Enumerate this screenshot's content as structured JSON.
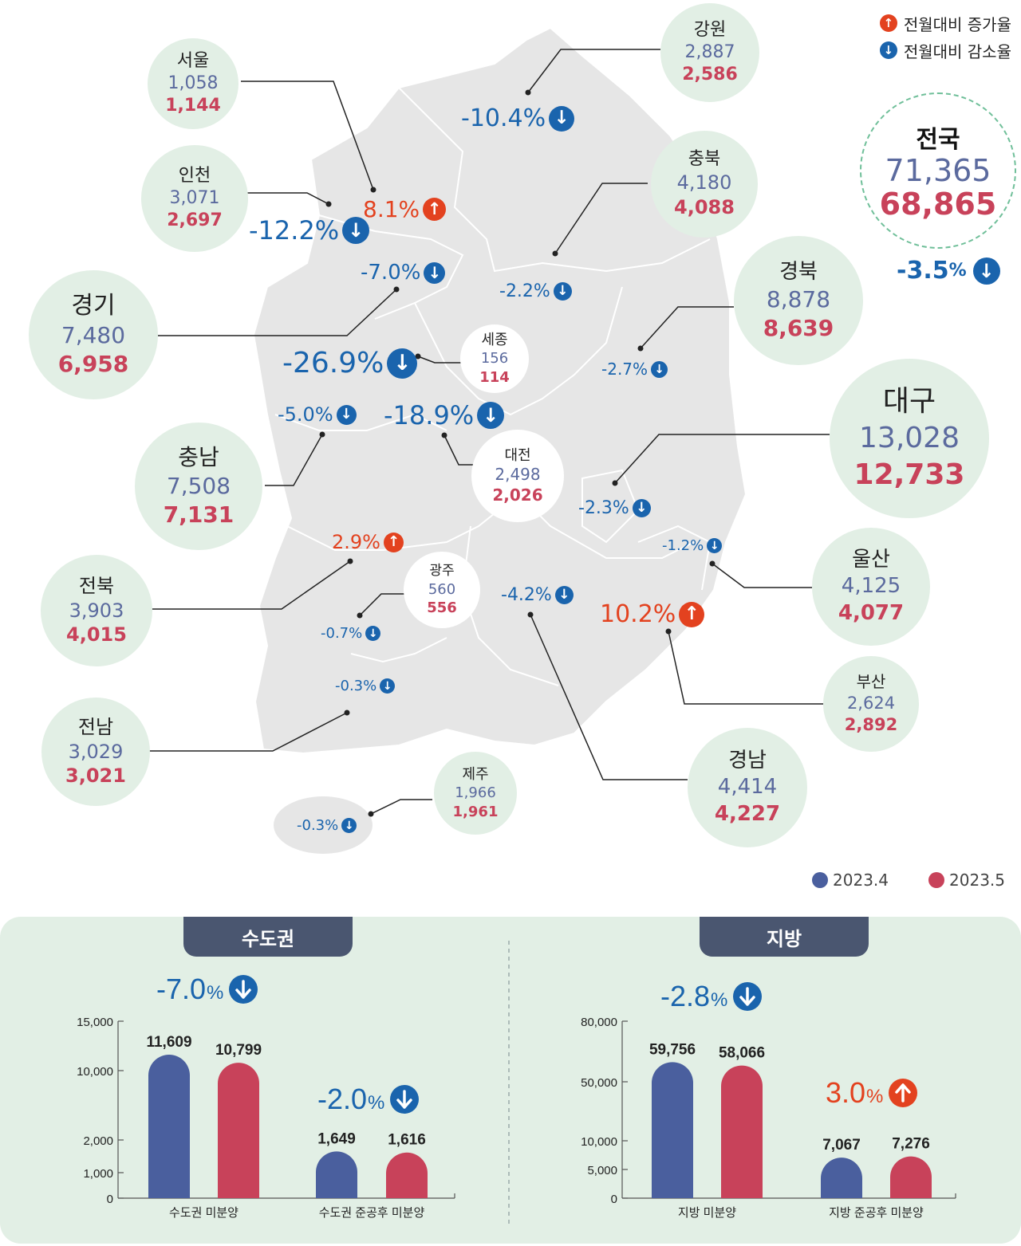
{
  "legend": {
    "increase": "전월대비 증가율",
    "decrease": "전월대비 감소율"
  },
  "periods": {
    "p1": "2023.4",
    "p2": "2023.5",
    "p1_color": "#4a5f9e",
    "p2_color": "#c8425a"
  },
  "nation": {
    "name": "전국",
    "v1": "71,365",
    "v2": "68,865",
    "rate": "-3.5",
    "unit": "%"
  },
  "regions": {
    "seoul": {
      "name": "서울",
      "v1": "1,058",
      "v2": "1,144",
      "rate": "8.1%"
    },
    "incheon": {
      "name": "인천",
      "v1": "3,071",
      "v2": "2,697",
      "rate": "-12.2%"
    },
    "gyeonggi": {
      "name": "경기",
      "v1": "7,480",
      "v2": "6,958",
      "rate": "-7.0%"
    },
    "gangwon": {
      "name": "강원",
      "v1": "2,887",
      "v2": "2,586",
      "rate": "-10.4%"
    },
    "chungbuk": {
      "name": "충북",
      "v1": "4,180",
      "v2": "4,088",
      "rate": "-2.2%"
    },
    "gyeongbuk": {
      "name": "경북",
      "v1": "8,878",
      "v2": "8,639",
      "rate": "-2.7%"
    },
    "daegu": {
      "name": "대구",
      "v1": "13,028",
      "v2": "12,733",
      "rate": "-2.3%"
    },
    "sejong": {
      "name": "세종",
      "v1": "156",
      "v2": "114",
      "rate": "-26.9%"
    },
    "daejeon": {
      "name": "대전",
      "v1": "2,498",
      "v2": "2,026",
      "rate": "-18.9%"
    },
    "chungnam": {
      "name": "충남",
      "v1": "7,508",
      "v2": "7,131",
      "rate": "-5.0%"
    },
    "jeonbuk": {
      "name": "전북",
      "v1": "3,903",
      "v2": "4,015",
      "rate": "2.9%"
    },
    "gwangju": {
      "name": "광주",
      "v1": "560",
      "v2": "556",
      "rate": "-0.7%"
    },
    "jeonnam": {
      "name": "전남",
      "v1": "3,029",
      "v2": "3,021",
      "rate": "-0.3%"
    },
    "jeju": {
      "name": "제주",
      "v1": "1,966",
      "v2": "1,961",
      "rate": "-0.3%"
    },
    "ulsan": {
      "name": "울산",
      "v1": "4,125",
      "v2": "4,077",
      "rate": "-1.2%"
    },
    "busan": {
      "name": "부산",
      "v1": "2,624",
      "v2": "2,892",
      "rate": "10.2%"
    },
    "gyeongnam": {
      "name": "경남",
      "v1": "4,414",
      "v2": "4,227",
      "rate": "-4.2%"
    }
  },
  "chart_data": [
    {
      "type": "bar",
      "title": "수도권",
      "categories": [
        "수도권 미분양",
        "수도권 준공후 미분양"
      ],
      "series": [
        {
          "name": "2023.4",
          "values": [
            11609,
            1649
          ]
        },
        {
          "name": "2023.5",
          "values": [
            10799,
            1616
          ]
        }
      ],
      "value_labels": [
        [
          "11,609",
          "1,649"
        ],
        [
          "10,799",
          "1,616"
        ]
      ],
      "group_rates": [
        {
          "value": "-7.0",
          "unit": "%",
          "dir": "down"
        },
        {
          "value": "-2.0",
          "unit": "%",
          "dir": "down"
        }
      ],
      "yticks": [
        0,
        1000,
        2000,
        10000,
        15000
      ],
      "ytick_labels": [
        "0",
        "1,000",
        "2,000",
        "10,000",
        "15,000"
      ],
      "ylim": [
        0,
        15000
      ],
      "scale": "broken"
    },
    {
      "type": "bar",
      "title": "지방",
      "categories": [
        "지방 미분양",
        "지방 준공후 미분양"
      ],
      "series": [
        {
          "name": "2023.4",
          "values": [
            59756,
            7067
          ]
        },
        {
          "name": "2023.5",
          "values": [
            58066,
            7276
          ]
        }
      ],
      "value_labels": [
        [
          "59,756",
          "7,067"
        ],
        [
          "58,066",
          "7,276"
        ]
      ],
      "group_rates": [
        {
          "value": "-2.8",
          "unit": "%",
          "dir": "down"
        },
        {
          "value": "3.0",
          "unit": "%",
          "dir": "up"
        }
      ],
      "yticks": [
        0,
        5000,
        10000,
        50000,
        80000
      ],
      "ytick_labels": [
        "0",
        "5,000",
        "10,000",
        "50,000",
        "80,000"
      ],
      "ylim": [
        0,
        80000
      ],
      "scale": "broken"
    }
  ]
}
